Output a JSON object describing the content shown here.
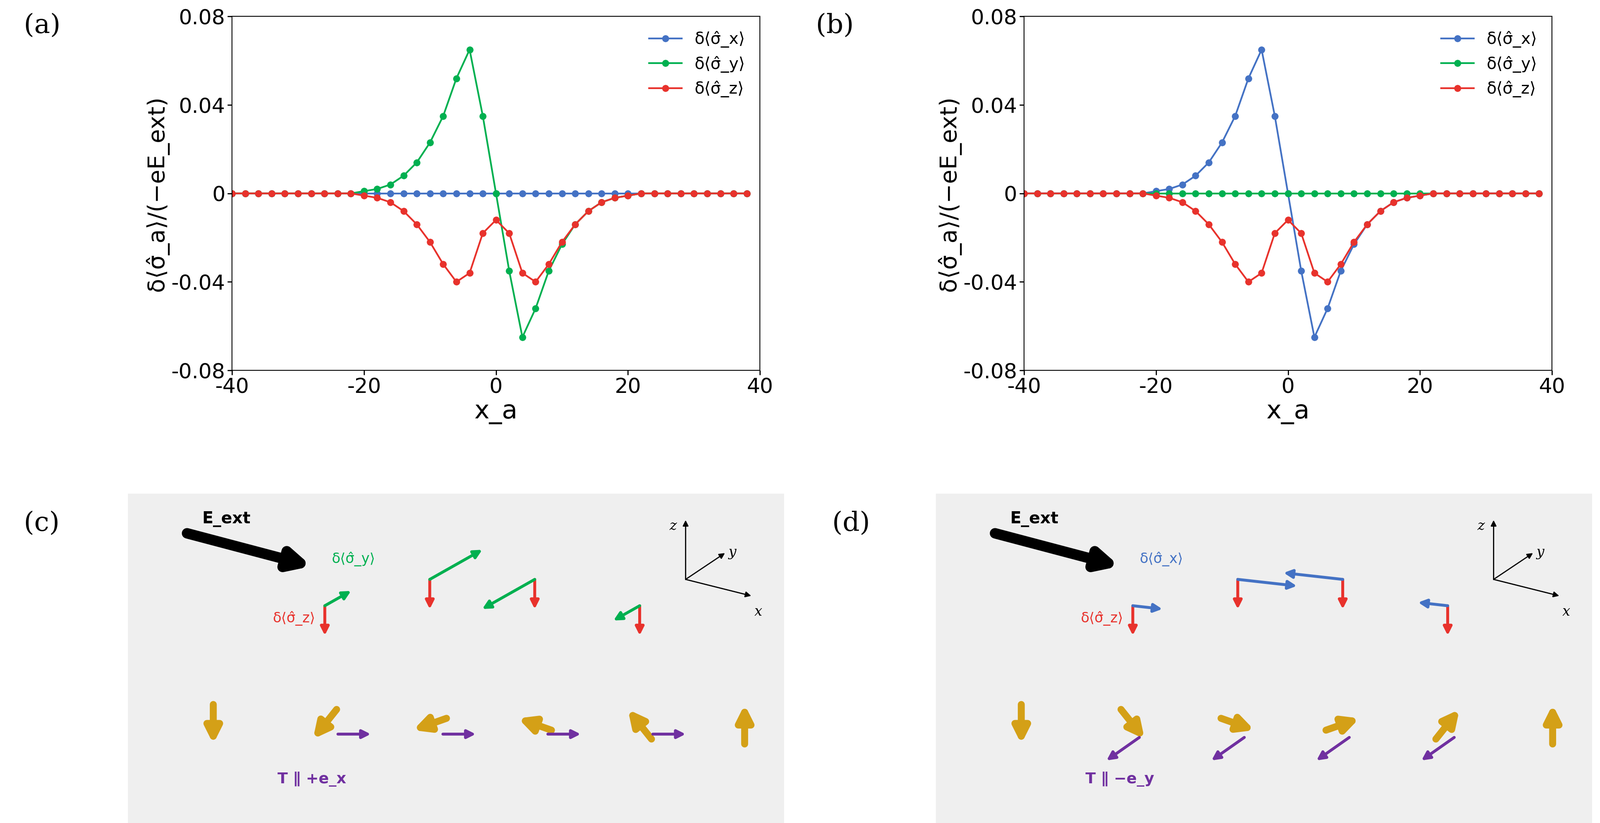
{
  "chart_data": [
    {
      "type": "line",
      "panel": "(a)",
      "x_label": "x_a",
      "y_label": "δ⟨σ̂_a⟩/(−eE_ext)",
      "x": [
        -40,
        -38,
        -36,
        -34,
        -32,
        -30,
        -28,
        -26,
        -24,
        -22,
        -20,
        -18,
        -16,
        -14,
        -12,
        -10,
        -8,
        -6,
        -4,
        -2,
        0,
        2,
        4,
        6,
        8,
        10,
        12,
        14,
        16,
        18,
        20,
        22,
        24,
        26,
        28,
        30,
        32,
        34,
        36,
        38
      ],
      "series": [
        {
          "name": "δ⟨σ̂_x⟩",
          "color": "#4472c4",
          "marker": "circle",
          "line_style": "solid",
          "values": [
            0,
            0,
            0,
            0,
            0,
            0,
            0,
            0,
            0,
            0,
            0,
            0,
            0,
            0,
            0,
            0,
            0,
            0,
            0,
            0,
            0,
            0,
            0,
            0,
            0,
            0,
            0,
            0,
            0,
            0,
            0,
            0,
            0,
            0,
            0,
            0,
            0,
            0,
            0,
            0
          ]
        },
        {
          "name": "δ⟨σ̂_y⟩",
          "color": "#00b050",
          "marker": "circle",
          "line_style": "solid",
          "values": [
            0,
            0,
            0,
            0,
            0,
            0,
            0,
            0,
            0,
            0,
            0.001,
            0.002,
            0.004,
            0.008,
            0.014,
            0.023,
            0.035,
            0.052,
            0.065,
            0.035,
            0,
            -0.035,
            -0.065,
            -0.052,
            -0.035,
            -0.023,
            -0.014,
            -0.008,
            -0.004,
            -0.002,
            -0.001,
            0,
            0,
            0,
            0,
            0,
            0,
            0,
            0,
            0
          ]
        },
        {
          "name": "δ⟨σ̂_z⟩",
          "color": "#e8322c",
          "marker": "circle",
          "line_style": "solid",
          "values": [
            0,
            0,
            0,
            0,
            0,
            0,
            0,
            0,
            0,
            0,
            -0.001,
            -0.002,
            -0.004,
            -0.008,
            -0.014,
            -0.022,
            -0.032,
            -0.04,
            -0.036,
            -0.018,
            -0.012,
            -0.018,
            -0.036,
            -0.04,
            -0.032,
            -0.022,
            -0.014,
            -0.008,
            -0.004,
            -0.002,
            -0.001,
            0,
            0,
            0,
            0,
            0,
            0,
            0,
            0,
            0
          ]
        }
      ],
      "xlim": [
        -40,
        40
      ],
      "xticks": [
        -40,
        -20,
        0,
        20,
        40
      ],
      "ylim": [
        -0.08,
        0.08
      ],
      "yticks": [
        -0.08,
        -0.04,
        0,
        0.04,
        0.08
      ],
      "grid": false,
      "legend": "upper right"
    },
    {
      "type": "line",
      "panel": "(b)",
      "x_label": "x_a",
      "y_label": "δ⟨σ̂_a⟩/(−eE_ext)",
      "x": [
        -40,
        -38,
        -36,
        -34,
        -32,
        -30,
        -28,
        -26,
        -24,
        -22,
        -20,
        -18,
        -16,
        -14,
        -12,
        -10,
        -8,
        -6,
        -4,
        -2,
        0,
        2,
        4,
        6,
        8,
        10,
        12,
        14,
        16,
        18,
        20,
        22,
        24,
        26,
        28,
        30,
        32,
        34,
        36,
        38
      ],
      "series": [
        {
          "name": "δ⟨σ̂_x⟩",
          "color": "#4472c4",
          "marker": "circle",
          "line_style": "solid",
          "values": [
            0,
            0,
            0,
            0,
            0,
            0,
            0,
            0,
            0,
            0,
            0.001,
            0.002,
            0.004,
            0.008,
            0.014,
            0.023,
            0.035,
            0.052,
            0.065,
            0.035,
            0,
            -0.035,
            -0.065,
            -0.052,
            -0.035,
            -0.023,
            -0.014,
            -0.008,
            -0.004,
            -0.002,
            -0.001,
            0,
            0,
            0,
            0,
            0,
            0,
            0,
            0,
            0
          ]
        },
        {
          "name": "δ⟨σ̂_y⟩",
          "color": "#00b050",
          "marker": "circle",
          "line_style": "solid",
          "values": [
            0,
            0,
            0,
            0,
            0,
            0,
            0,
            0,
            0,
            0,
            0,
            0,
            0,
            0,
            0,
            0,
            0,
            0,
            0,
            0,
            0,
            0,
            0,
            0,
            0,
            0,
            0,
            0,
            0,
            0,
            0,
            0,
            0,
            0,
            0,
            0,
            0,
            0,
            0,
            0
          ]
        },
        {
          "name": "δ⟨σ̂_z⟩",
          "color": "#e8322c",
          "marker": "circle",
          "line_style": "solid",
          "values": [
            0,
            0,
            0,
            0,
            0,
            0,
            0,
            0,
            0,
            0,
            -0.001,
            -0.002,
            -0.004,
            -0.008,
            -0.014,
            -0.022,
            -0.032,
            -0.04,
            -0.036,
            -0.018,
            -0.012,
            -0.018,
            -0.036,
            -0.04,
            -0.032,
            -0.022,
            -0.014,
            -0.008,
            -0.004,
            -0.002,
            -0.001,
            0,
            0,
            0,
            0,
            0,
            0,
            0,
            0,
            0
          ]
        }
      ],
      "xlim": [
        -40,
        40
      ],
      "xticks": [
        -40,
        -20,
        0,
        20,
        40
      ],
      "ylim": [
        -0.08,
        0.08
      ],
      "yticks": [
        -0.08,
        -0.04,
        0,
        0.04,
        0.08
      ],
      "grid": false,
      "legend": "upper right"
    }
  ],
  "diagrams": [
    {
      "panel": "(c)",
      "field_label": "E_ext",
      "in_plane_label": "δ⟨σ̂_y⟩",
      "in_plane_color": "#00b050",
      "out_of_plane_label": "δ⟨σ̂_z⟩",
      "out_of_plane_color": "#e8322c",
      "torque_label": "T ∥ +e_x",
      "axis_labels": [
        "x",
        "y",
        "z"
      ]
    },
    {
      "panel": "(d)",
      "field_label": "E_ext",
      "in_plane_label": "δ⟨σ̂_x⟩",
      "in_plane_color": "#4472c4",
      "out_of_plane_label": "δ⟨σ̂_z⟩",
      "out_of_plane_color": "#e8322c",
      "torque_label": "T ∥ −e_y",
      "axis_labels": [
        "x",
        "y",
        "z"
      ]
    }
  ]
}
